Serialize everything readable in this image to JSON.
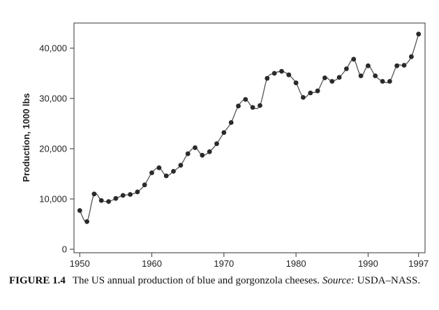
{
  "chart_data": {
    "type": "line",
    "title": "",
    "xlabel": "",
    "ylabel": "Production, 1000 lbs",
    "xlim": [
      1949.2,
      1997.9
    ],
    "ylim": [
      -700,
      45000
    ],
    "x_ticks": [
      1950,
      1960,
      1970,
      1980,
      1990,
      1997
    ],
    "x_tick_labels": [
      "1950",
      "1960",
      "1970",
      "1980",
      "1990",
      "1997"
    ],
    "y_ticks": [
      0,
      10000,
      20000,
      30000,
      40000
    ],
    "y_tick_labels": [
      "0",
      "10,000",
      "20,000",
      "30,000",
      "40,000"
    ],
    "grid": false,
    "legend": "none",
    "series": [
      {
        "x": [
          1950,
          1951,
          1952,
          1953,
          1954,
          1955,
          1956,
          1957,
          1958,
          1959,
          1960,
          1961,
          1962,
          1963,
          1964,
          1965,
          1966,
          1967,
          1968,
          1969,
          1970,
          1971,
          1972,
          1973,
          1974,
          1975,
          1976,
          1977,
          1978,
          1979,
          1980,
          1981,
          1982,
          1983,
          1984,
          1985,
          1986,
          1987,
          1988,
          1989,
          1990,
          1991,
          1992,
          1993,
          1994,
          1995,
          1996,
          1997
        ],
        "y": [
          7700,
          5500,
          11000,
          9700,
          9500,
          10100,
          10700,
          10900,
          11400,
          12800,
          15200,
          16200,
          14600,
          15500,
          16700,
          19000,
          20200,
          18700,
          19400,
          21000,
          23200,
          25200,
          28500,
          29800,
          28200,
          28600,
          34000,
          35000,
          35400,
          34700,
          33100,
          30200,
          31100,
          31500,
          34100,
          33400,
          34200,
          35900,
          37800,
          34500,
          36500,
          34500,
          33400,
          33400,
          36500,
          36600,
          38300,
          42800
        ]
      }
    ],
    "colors": {
      "line": "#555555",
      "marker": "#2a2a2a"
    }
  },
  "caption": {
    "figure_label": "FIGURE 1.4",
    "text": "The US annual production of blue and gorgonzola cheeses. ",
    "source_label": "Source:",
    "source_text": " USDA–NASS."
  }
}
